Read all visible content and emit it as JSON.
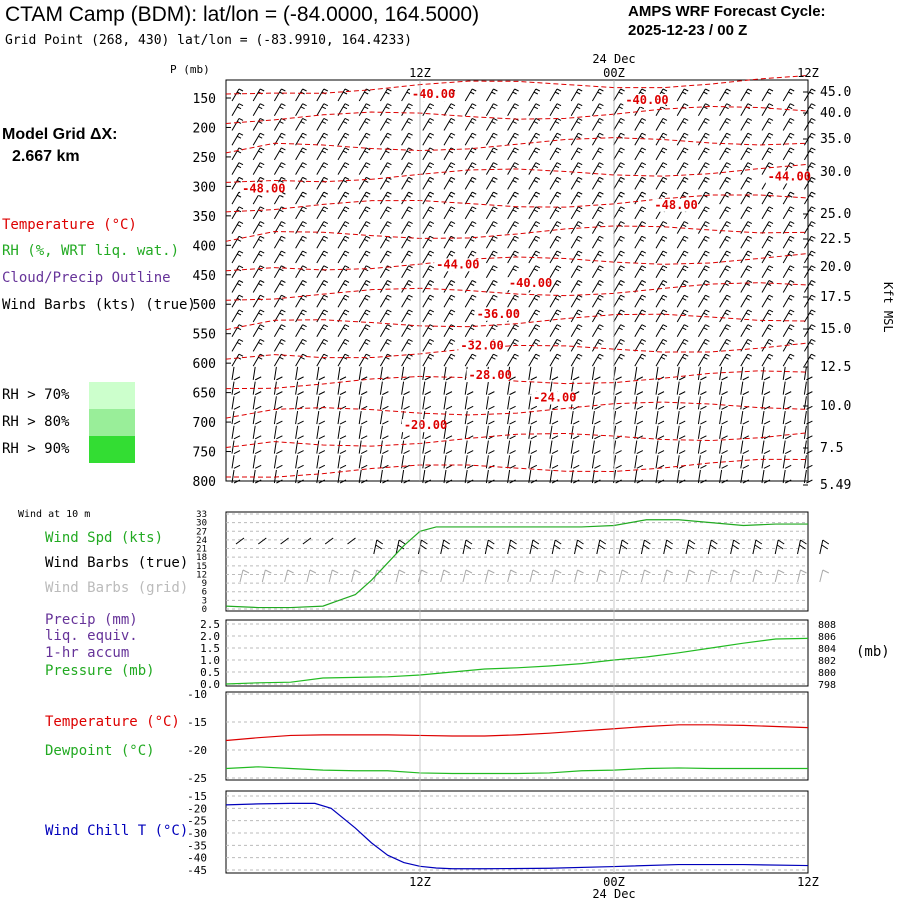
{
  "header": {
    "title": "CTAM Camp (BDM):  lat/lon = (-84.0000, 164.5000)",
    "subtitle": "Grid Point (268, 430) lat/lon = (-83.9910, 164.4233)",
    "cycle_label": "AMPS WRF Forecast Cycle:",
    "cycle_value": "2025-12-23 / 00  Z"
  },
  "left_panel": {
    "model_grid_label": "Model Grid ΔX:",
    "model_grid_value": "2.667 km",
    "temperature_label": "Temperature (°C)",
    "rh_label": "RH (%, WRT liq. wat.)",
    "cloud_label": "Cloud/Precip Outline",
    "wind_barbs_label": "Wind Barbs (kts) (true)",
    "rh_legend": [
      {
        "label": "RH > 70%",
        "color": "#ccffcc"
      },
      {
        "label": "RH > 80%",
        "color": "#99ee99"
      },
      {
        "label": "RH > 90%",
        "color": "#33dd33"
      }
    ]
  },
  "colors": {
    "temperature": "#dd0000",
    "rh": "#22aa22",
    "cloud": "#663399",
    "wind": "#000000",
    "grid_wind": "#aaaaaa",
    "precip": "#663399",
    "pressure": "#22bb22",
    "dewpoint": "#22bb22",
    "wind_chill": "#0000bb"
  },
  "time_axis": {
    "ticks": [
      "12Z",
      "00Z",
      "12Z"
    ],
    "date_label": "24 Dec"
  },
  "upper_panel": {
    "y_axis_title": "P (mb)",
    "pressure_ticks": [
      "150",
      "200",
      "250",
      "300",
      "350",
      "400",
      "450",
      "500",
      "550",
      "600",
      "650",
      "700",
      "750",
      "800"
    ],
    "height_ticks": [
      "45.0",
      "40.0",
      "35.0",
      "30.0",
      "25.0",
      "22.5",
      "20.0",
      "17.5",
      "15.0",
      "12.5",
      "10.0",
      "7.5",
      "5.49"
    ],
    "height_axis_title": "Kft MSL"
  },
  "panel_wind": {
    "label_10m": "Wind at 10 m",
    "labels": [
      "Wind Spd (kts)",
      "Wind Barbs (true)",
      "Wind Barbs (grid)"
    ],
    "y_ticks": [
      "33",
      "30",
      "27",
      "24",
      "21",
      "18",
      "15",
      "12",
      "9",
      "6",
      "3",
      "0"
    ]
  },
  "panel_precip": {
    "labels": [
      "Precip (mm)",
      "liq. equiv.",
      "1-hr accum",
      "Pressure (mb)"
    ],
    "left_ticks": [
      "2.5",
      "2.0",
      "1.5",
      "1.0",
      "0.5",
      "0.0"
    ],
    "right_ticks": [
      "808",
      "806",
      "804",
      "802",
      "800",
      "798"
    ],
    "right_unit": "(mb)"
  },
  "panel_temp": {
    "labels": [
      "Temperature (°C)",
      "Dewpoint (°C)"
    ],
    "y_ticks": [
      "-10",
      "-15",
      "-20",
      "-25"
    ]
  },
  "panel_chill": {
    "labels": [
      "Wind Chill T (°C)"
    ],
    "y_ticks": [
      "-15",
      "-20",
      "-25",
      "-30",
      "-35",
      "-40",
      "-45"
    ]
  },
  "chart_data": [
    {
      "type": "line",
      "panel": "upper-air isotherms",
      "x_time_hours": [
        0,
        12,
        24,
        36
      ],
      "isotherm_labels": [
        {
          "label": "-40.00",
          "p_mb": 150,
          "t_hour": 11.5
        },
        {
          "label": "-40.00",
          "p_mb": 160,
          "t_hour": 24.7
        },
        {
          "label": "-44.00",
          "p_mb": 290,
          "t_hour": 33.5
        },
        {
          "label": "-48.00",
          "p_mb": 310,
          "t_hour": 1.0
        },
        {
          "label": "-48.00",
          "p_mb": 338,
          "t_hour": 26.5
        },
        {
          "label": "-44.00",
          "p_mb": 439,
          "t_hour": 13.0
        },
        {
          "label": "-40.00",
          "p_mb": 471,
          "t_hour": 17.5
        },
        {
          "label": "-36.00",
          "p_mb": 523,
          "t_hour": 15.5
        },
        {
          "label": "-32.00",
          "p_mb": 577,
          "t_hour": 14.5
        },
        {
          "label": "-28.00",
          "p_mb": 627,
          "t_hour": 15.0
        },
        {
          "label": "-24.00",
          "p_mb": 665,
          "t_hour": 19.0
        },
        {
          "label": "-20.00",
          "p_mb": 712,
          "t_hour": 11.0
        }
      ]
    },
    {
      "type": "line",
      "panel": "10 m wind speed",
      "ylim": [
        0,
        33
      ],
      "x_time_hours": [
        0,
        2,
        4,
        6,
        7,
        8,
        9,
        10,
        11,
        12,
        13,
        14,
        15,
        18,
        20,
        22,
        24,
        26,
        28,
        30,
        32,
        34,
        36
      ],
      "series": [
        {
          "name": "Wind Spd (kts)",
          "values": [
            1,
            0.5,
            0.5,
            1,
            3,
            5,
            10,
            16,
            22,
            27,
            28.5,
            28.5,
            28.5,
            28.5,
            28.5,
            28.5,
            29,
            31,
            31,
            30,
            29,
            29.5,
            29.5
          ]
        }
      ]
    },
    {
      "type": "line",
      "panel": "precip / pressure",
      "left_ylim": [
        0,
        2.5
      ],
      "right_ylim": [
        798,
        808
      ],
      "x_time_hours": [
        0,
        2,
        4,
        6,
        8,
        10,
        12,
        14,
        16,
        18,
        20,
        22,
        24,
        26,
        28,
        30,
        32,
        34,
        36
      ],
      "series": [
        {
          "name": "Pressure (mb)",
          "axis": "right",
          "values": [
            798.0,
            798.2,
            798.3,
            799.0,
            799.1,
            799.2,
            799.5,
            800.0,
            800.5,
            800.7,
            801.0,
            801.4,
            802.0,
            802.5,
            803.2,
            804.0,
            804.8,
            805.5,
            805.6
          ]
        }
      ]
    },
    {
      "type": "line",
      "panel": "temperature / dewpoint",
      "ylim": [
        -25,
        -10
      ],
      "x_time_hours": [
        0,
        2,
        4,
        6,
        8,
        10,
        12,
        14,
        16,
        18,
        20,
        22,
        24,
        26,
        28,
        30,
        32,
        34,
        36
      ],
      "series": [
        {
          "name": "Temperature (°C)",
          "values": [
            -18.3,
            -17.8,
            -17.4,
            -17.3,
            -17.3,
            -17.3,
            -17.4,
            -17.5,
            -17.5,
            -17.3,
            -17.0,
            -16.6,
            -16.2,
            -15.8,
            -15.5,
            -15.5,
            -15.6,
            -15.8,
            -16.0
          ]
        },
        {
          "name": "Dewpoint (°C)",
          "values": [
            -23.3,
            -23.0,
            -23.3,
            -23.6,
            -23.7,
            -23.7,
            -24.1,
            -24.2,
            -24.2,
            -24.2,
            -24.1,
            -23.7,
            -23.6,
            -23.3,
            -23.2,
            -23.3,
            -23.3,
            -23.3,
            -23.3
          ]
        }
      ]
    },
    {
      "type": "line",
      "panel": "wind chill",
      "ylim": [
        -45,
        -15
      ],
      "x_time_hours": [
        0,
        2,
        4,
        5.5,
        6.5,
        8,
        9,
        10,
        11,
        12,
        13,
        14,
        16,
        20,
        24,
        28,
        32,
        36
      ],
      "series": [
        {
          "name": "Wind Chill T (°C)",
          "values": [
            -18.6,
            -18.2,
            -18.0,
            -18.0,
            -20,
            -28,
            -34,
            -39,
            -42,
            -43.5,
            -44.2,
            -44.5,
            -44.5,
            -44.3,
            -43.6,
            -42.8,
            -42.8,
            -43.2
          ]
        }
      ]
    }
  ]
}
